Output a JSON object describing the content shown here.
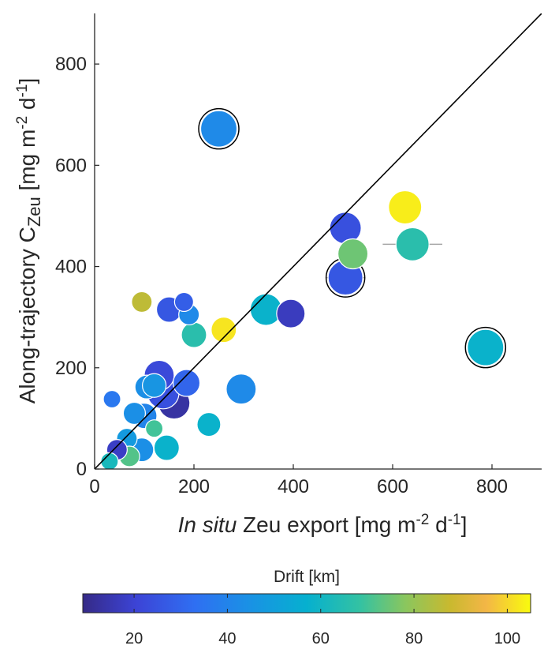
{
  "chart_data": {
    "type": "scatter",
    "xlabel_parts": [
      {
        "text": "In situ",
        "style": "italic"
      },
      {
        "text": " Zeu export [mg m"
      },
      {
        "text": "-2",
        "sup": true
      },
      {
        "text": " d"
      },
      {
        "text": "-1",
        "sup": true
      },
      {
        "text": "]"
      }
    ],
    "ylabel_parts": [
      {
        "text": "Along-trajectory C"
      },
      {
        "text": "Zeu",
        "sub": true
      },
      {
        "text": " [mg m"
      },
      {
        "text": "-2",
        "sup": true
      },
      {
        "text": " d"
      },
      {
        "text": "-1",
        "sup": true
      },
      {
        "text": "]"
      }
    ],
    "xlim": [
      0,
      900
    ],
    "ylim": [
      0,
      900
    ],
    "xticks": [
      "0",
      "200",
      "400",
      "600",
      "800"
    ],
    "yticks": [
      "0",
      "200",
      "400",
      "600",
      "800"
    ],
    "one_to_one_line": true,
    "grid": false,
    "colorbar": {
      "label": "Drift [km]",
      "range": [
        9,
        105
      ],
      "ticks": [
        "20",
        "40",
        "60",
        "80",
        "100"
      ],
      "colormap": "parula"
    },
    "encoding": {
      "size": "relative marker size",
      "color": "drift km",
      "outlined": "black ring"
    },
    "points": [
      {
        "x": 250,
        "y": 672,
        "drift": 42,
        "size": 23,
        "outlined": true
      },
      {
        "x": 787,
        "y": 240,
        "drift": 58,
        "size": 23,
        "outlined": true
      },
      {
        "x": 505,
        "y": 378,
        "drift": 26,
        "size": 22,
        "outlined": true,
        "xerr": 40
      },
      {
        "x": 625,
        "y": 517,
        "drift": 103,
        "size": 21
      },
      {
        "x": 505,
        "y": 476,
        "drift": 24,
        "size": 20,
        "xerr": 30
      },
      {
        "x": 640,
        "y": 444,
        "drift": 66,
        "size": 21,
        "xerr": 60
      },
      {
        "x": 520,
        "y": 425,
        "drift": 75,
        "size": 19
      },
      {
        "x": 345,
        "y": 315,
        "drift": 58,
        "size": 20
      },
      {
        "x": 395,
        "y": 307,
        "drift": 17,
        "size": 18
      },
      {
        "x": 260,
        "y": 275,
        "drift": 102,
        "size": 16,
        "xerr": 25
      },
      {
        "x": 95,
        "y": 330,
        "drift": 86,
        "size": 13
      },
      {
        "x": 180,
        "y": 330,
        "drift": 28,
        "size": 12
      },
      {
        "x": 150,
        "y": 315,
        "drift": 26,
        "size": 16
      },
      {
        "x": 190,
        "y": 305,
        "drift": 42,
        "size": 13
      },
      {
        "x": 200,
        "y": 265,
        "drift": 66,
        "size": 16
      },
      {
        "x": 295,
        "y": 158,
        "drift": 42,
        "size": 19
      },
      {
        "x": 230,
        "y": 88,
        "drift": 58,
        "size": 15
      },
      {
        "x": 130,
        "y": 185,
        "drift": 22,
        "size": 19
      },
      {
        "x": 185,
        "y": 170,
        "drift": 30,
        "size": 17
      },
      {
        "x": 105,
        "y": 162,
        "drift": 44,
        "size": 15
      },
      {
        "x": 120,
        "y": 165,
        "drift": 46,
        "size": 15
      },
      {
        "x": 160,
        "y": 130,
        "drift": 13,
        "size": 20
      },
      {
        "x": 138,
        "y": 150,
        "drift": 24,
        "size": 20
      },
      {
        "x": 35,
        "y": 138,
        "drift": 36,
        "size": 11
      },
      {
        "x": 80,
        "y": 110,
        "drift": 44,
        "size": 14
      },
      {
        "x": 100,
        "y": 105,
        "drift": 40,
        "size": 16
      },
      {
        "x": 120,
        "y": 80,
        "drift": 70,
        "size": 11
      },
      {
        "x": 95,
        "y": 38,
        "drift": 44,
        "size": 15
      },
      {
        "x": 145,
        "y": 42,
        "drift": 58,
        "size": 16
      },
      {
        "x": 65,
        "y": 60,
        "drift": 48,
        "size": 13
      },
      {
        "x": 70,
        "y": 25,
        "drift": 72,
        "size": 13
      },
      {
        "x": 45,
        "y": 38,
        "drift": 18,
        "size": 13
      },
      {
        "x": 30,
        "y": 15,
        "drift": 62,
        "size": 11
      }
    ]
  }
}
